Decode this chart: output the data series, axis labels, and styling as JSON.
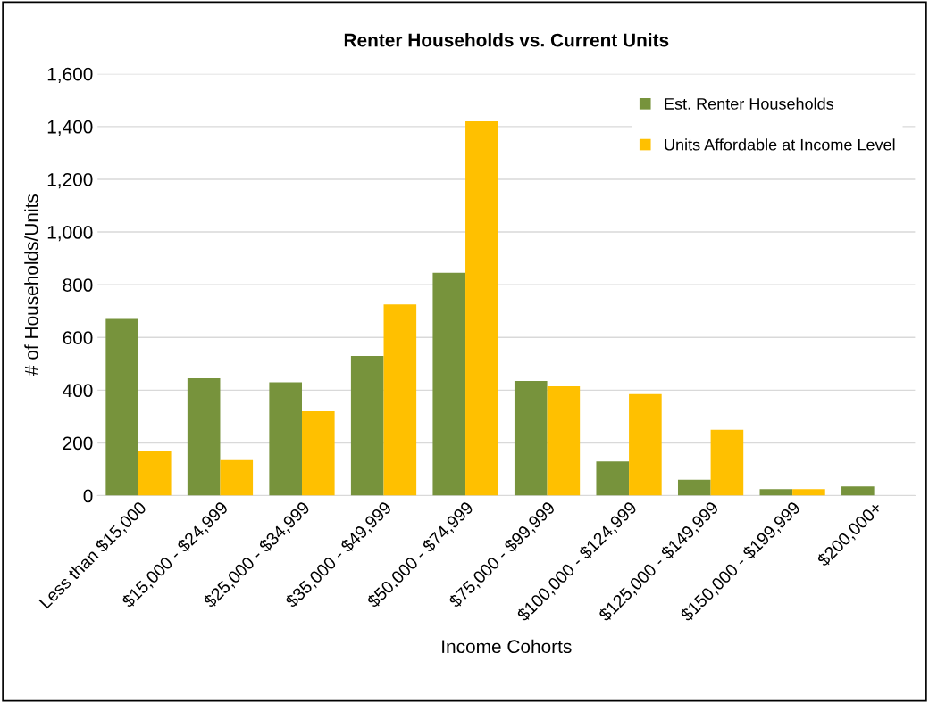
{
  "chart_data": {
    "type": "bar",
    "title": "Renter Households vs. Current Units",
    "xlabel": "Income Cohorts",
    "ylabel": "# of Households/Units",
    "categories": [
      "Less than $15,000",
      "$15,000 - $24,999",
      "$25,000 - $34,999",
      "$35,000 - $49,999",
      "$50,000 - $74,999",
      "$75,000 - $99,999",
      "$100,000 - $124,999",
      "$125,000 - $149,999",
      "$150,000 - $199,999",
      "$200,000+"
    ],
    "series": [
      {
        "name": "Est. Renter Households",
        "color": "#77933c",
        "values": [
          670,
          445,
          430,
          530,
          845,
          435,
          130,
          60,
          25,
          35
        ]
      },
      {
        "name": "Units Affordable at Income Level",
        "color": "#ffc000",
        "values": [
          170,
          135,
          320,
          725,
          1420,
          415,
          385,
          250,
          25,
          0
        ]
      }
    ],
    "ylim": [
      0,
      1600
    ],
    "yticks": [
      {
        "value": 0,
        "label": "0"
      },
      {
        "value": 200,
        "label": "200"
      },
      {
        "value": 400,
        "label": "400"
      },
      {
        "value": 600,
        "label": "600"
      },
      {
        "value": 800,
        "label": "800"
      },
      {
        "value": 1000,
        "label": "1,000"
      },
      {
        "value": 1200,
        "label": "1,200"
      },
      {
        "value": 1400,
        "label": "1,400"
      },
      {
        "value": 1600,
        "label": "1,600"
      }
    ],
    "grid": "y",
    "legend": "top right"
  }
}
